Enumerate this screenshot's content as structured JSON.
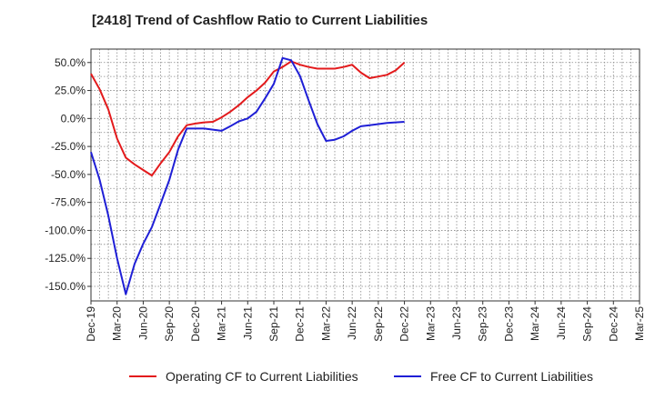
{
  "chart_data": {
    "type": "line",
    "title": "[2418]  Trend of Cashflow Ratio to Current Liabilities",
    "xlabel": "",
    "ylabel": "",
    "x_ticks": [
      "Dec-19",
      "Mar-20",
      "Jun-20",
      "Sep-20",
      "Dec-20",
      "Mar-21",
      "Jun-21",
      "Sep-21",
      "Dec-21",
      "Mar-22",
      "Jun-22",
      "Sep-22",
      "Dec-22",
      "Mar-23",
      "Jun-23",
      "Sep-23",
      "Dec-23",
      "Mar-24",
      "Jun-24",
      "Sep-24",
      "Dec-24",
      "Mar-25"
    ],
    "y_ticks": [
      "50.0%",
      "25.0%",
      "0.0%",
      "-25.0%",
      "-50.0%",
      "-75.0%",
      "-100.0%",
      "-125.0%",
      "-150.0%"
    ],
    "y_tick_values": [
      50,
      25,
      0,
      -25,
      -50,
      -75,
      -100,
      -125,
      -150
    ],
    "ylim": [
      -163,
      62
    ],
    "grid": true,
    "legend_position": "bottom",
    "series": [
      {
        "name": "Operating CF to Current Liabilities",
        "color": "#e31a1c",
        "values": [
          40,
          26,
          8,
          -18,
          -35,
          -41,
          -46,
          -51,
          -40,
          -30,
          -16,
          -6,
          -4.5,
          -3.5,
          -3,
          1,
          6,
          12,
          19,
          25,
          32,
          42,
          46,
          51,
          48,
          46,
          44.5,
          44.5,
          44.5,
          46,
          48,
          41,
          36,
          37.5,
          39,
          43,
          50
        ]
      },
      {
        "name": "Free CF to Current Liabilities",
        "color": "#1f1fd6",
        "values": [
          -30,
          -55,
          -87,
          -125,
          -157,
          -130,
          -112,
          -97,
          -76,
          -55,
          -28,
          -9,
          -9,
          -9,
          -10,
          -11,
          -7,
          -2.5,
          0,
          6,
          18,
          31,
          54,
          52,
          38,
          16,
          -5,
          -20,
          -19,
          -16,
          -11,
          -7,
          -6,
          -5,
          -4,
          -3.5,
          -3
        ]
      }
    ]
  }
}
